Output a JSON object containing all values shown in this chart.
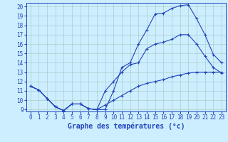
{
  "xlabel": "Graphe des températures (°c)",
  "ylim": [
    9,
    20
  ],
  "xlim": [
    0,
    23
  ],
  "yticks": [
    9,
    10,
    11,
    12,
    13,
    14,
    15,
    16,
    17,
    18,
    19,
    20
  ],
  "xticks": [
    0,
    1,
    2,
    3,
    4,
    5,
    6,
    7,
    8,
    9,
    10,
    11,
    12,
    13,
    14,
    15,
    16,
    17,
    18,
    19,
    20,
    21,
    22,
    23
  ],
  "xtick_labels": [
    "0",
    "1",
    "2",
    "3",
    "4",
    "5",
    "6",
    "7",
    "8",
    "9",
    "10",
    "11",
    "12",
    "13",
    "14",
    "15",
    "16",
    "17",
    "18",
    "19",
    "20",
    "21",
    "22",
    "23"
  ],
  "line1_x": [
    0,
    1,
    2,
    3,
    4,
    5,
    6,
    7,
    8,
    9,
    10,
    11,
    12,
    13,
    14,
    15,
    16,
    17,
    18,
    19,
    20,
    21,
    22,
    23
  ],
  "line1_y": [
    11.5,
    11.1,
    10.2,
    9.3,
    8.9,
    9.6,
    9.6,
    9.1,
    9.0,
    9.0,
    11.0,
    13.5,
    14.0,
    16.0,
    17.5,
    19.2,
    19.3,
    19.8,
    20.1,
    20.2,
    18.7,
    17.0,
    14.9,
    14.0
  ],
  "line2_x": [
    0,
    1,
    2,
    3,
    4,
    5,
    6,
    7,
    8,
    9,
    10,
    11,
    12,
    13,
    14,
    15,
    16,
    17,
    18,
    19,
    20,
    21,
    22,
    23
  ],
  "line2_y": [
    11.5,
    11.1,
    10.2,
    9.3,
    8.9,
    9.6,
    9.6,
    9.1,
    9.0,
    11.0,
    12.0,
    13.0,
    13.8,
    14.0,
    15.5,
    16.0,
    16.2,
    16.5,
    17.0,
    17.0,
    16.0,
    14.7,
    13.5,
    12.9
  ],
  "line3_x": [
    0,
    1,
    2,
    3,
    4,
    5,
    6,
    7,
    8,
    9,
    10,
    11,
    12,
    13,
    14,
    15,
    16,
    17,
    18,
    19,
    20,
    21,
    22,
    23
  ],
  "line3_y": [
    11.5,
    11.1,
    10.2,
    9.3,
    8.9,
    9.6,
    9.6,
    9.1,
    9.0,
    9.5,
    10.0,
    10.5,
    11.0,
    11.5,
    11.8,
    12.0,
    12.2,
    12.5,
    12.7,
    12.9,
    13.0,
    13.0,
    13.0,
    13.0
  ],
  "line_color": "#2244bb",
  "marker": "+",
  "marker_size": 3,
  "bg_color": "#cceeff",
  "grid_color": "#aacccc",
  "axis_label_color": "#2244bb",
  "tick_color": "#2244bb",
  "xlabel_fontsize": 7,
  "tick_fontsize": 5.5,
  "linewidth": 0.8
}
